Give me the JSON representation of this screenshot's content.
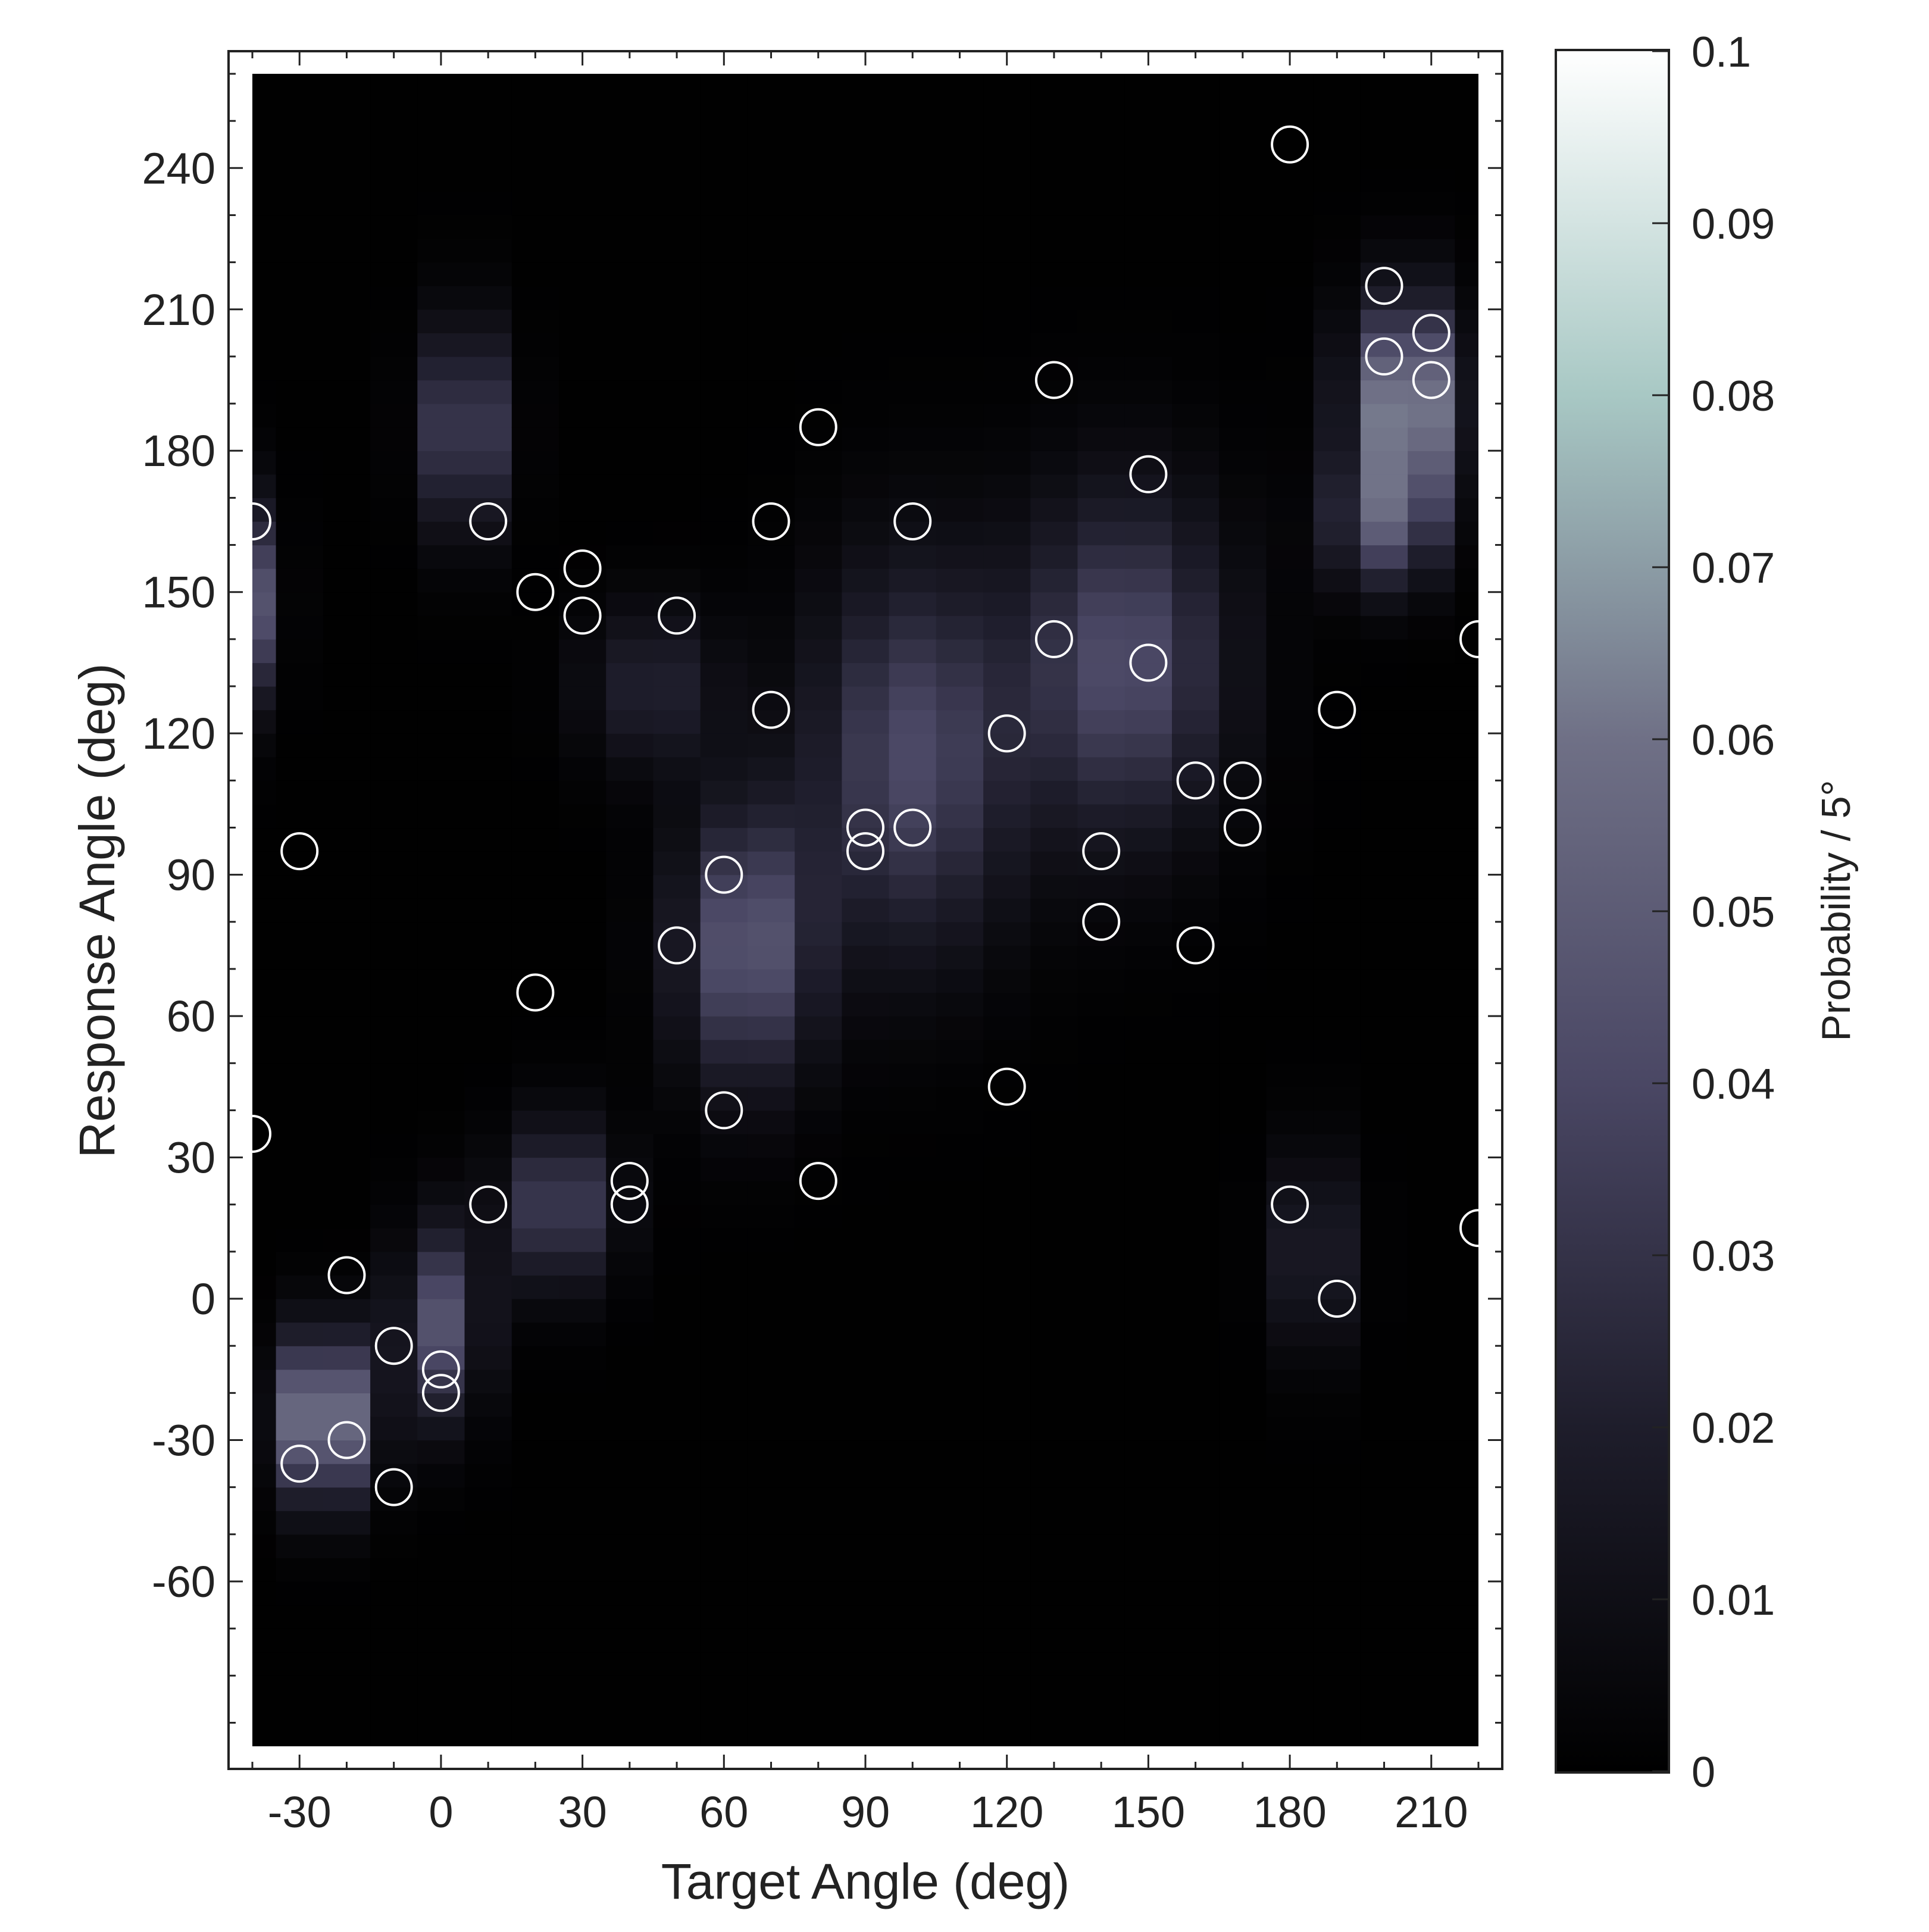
{
  "chart_data": {
    "type": "heatmap",
    "title": "",
    "xlabel": "Target Angle (deg)",
    "ylabel": "Response Angle (deg)",
    "xlim": [
      -45,
      225
    ],
    "ylim": [
      -90,
      265
    ],
    "xticks": [
      "-30",
      "0",
      "30",
      "60",
      "90",
      "120",
      "150",
      "180",
      "210"
    ],
    "xtick_values": [
      -30,
      0,
      30,
      60,
      90,
      120,
      150,
      180,
      210
    ],
    "yticks": [
      "-60",
      "-30",
      "0",
      "30",
      "60",
      "90",
      "120",
      "150",
      "180",
      "210",
      "240"
    ],
    "ytick_values": [
      -60,
      -30,
      0,
      30,
      60,
      90,
      120,
      150,
      180,
      210,
      240
    ],
    "grid": false,
    "bin_width_deg": 5,
    "x_bins_deg": 10,
    "colorbar": {
      "label": "Probability / 5°",
      "min": 0,
      "max": 0.1,
      "ticks": [
        "0",
        "0.01",
        "0.02",
        "0.03",
        "0.04",
        "0.05",
        "0.06",
        "0.07",
        "0.08",
        "0.09",
        "0.1"
      ],
      "tick_values": [
        0,
        0.01,
        0.02,
        0.03,
        0.04,
        0.05,
        0.06,
        0.07,
        0.08,
        0.09,
        0.1
      ],
      "colormap": [
        "#000000",
        "#1e1d2b",
        "#4a4764",
        "#6f7086",
        "#a8c8c4",
        "#ffffff"
      ]
    },
    "density_components": [
      {
        "x": -40,
        "y": 148,
        "sx": 4,
        "sy": 14,
        "peak": 0.045
      },
      {
        "x": -25,
        "y": -25,
        "sx": 7,
        "sy": 12,
        "peak": 0.072
      },
      {
        "x": 0,
        "y": -5,
        "sx": 6,
        "sy": 14,
        "peak": 0.045
      },
      {
        "x": 5,
        "y": 185,
        "sx": 6,
        "sy": 15,
        "peak": 0.043
      },
      {
        "x": 25,
        "y": 20,
        "sx": 8,
        "sy": 12,
        "peak": 0.038
      },
      {
        "x": 65,
        "y": 75,
        "sx": 10,
        "sy": 20,
        "peak": 0.048
      },
      {
        "x": 45,
        "y": 130,
        "sx": 10,
        "sy": 12,
        "peak": 0.022
      },
      {
        "x": 100,
        "y": 115,
        "sx": 15,
        "sy": 28,
        "peak": 0.04
      },
      {
        "x": 145,
        "y": 135,
        "sx": 15,
        "sy": 25,
        "peak": 0.042
      },
      {
        "x": 205,
        "y": 190,
        "sx": 8,
        "sy": 15,
        "peak": 0.072
      },
      {
        "x": 200,
        "y": 165,
        "sx": 8,
        "sy": 10,
        "peak": 0.04
      },
      {
        "x": 185,
        "y": 10,
        "sx": 6,
        "sy": 15,
        "peak": 0.022
      }
    ],
    "series": [
      {
        "type": "scatter",
        "x": [
          -40,
          -40,
          -30,
          -30,
          -20,
          -20,
          -10,
          -10,
          0,
          0,
          10,
          10,
          20,
          20,
          30,
          30,
          40,
          40,
          50,
          50,
          60,
          60,
          70,
          70,
          80,
          80,
          90,
          90,
          100,
          100,
          120,
          120,
          130,
          130,
          140,
          140,
          150,
          150,
          160,
          160,
          170,
          170,
          180,
          180,
          190,
          190,
          200,
          200,
          210,
          210,
          220,
          220
        ],
        "y": [
          165,
          35,
          95,
          -35,
          5,
          -30,
          -10,
          -40,
          -15,
          -20,
          165,
          20,
          150,
          65,
          155,
          145,
          25,
          20,
          145,
          75,
          90,
          40,
          165,
          125,
          185,
          25,
          100,
          95,
          165,
          100,
          120,
          45,
          195,
          140,
          95,
          80,
          175,
          135,
          110,
          75,
          110,
          100,
          245,
          20,
          125,
          0,
          215,
          200,
          205,
          195,
          140,
          15
        ]
      }
    ]
  }
}
